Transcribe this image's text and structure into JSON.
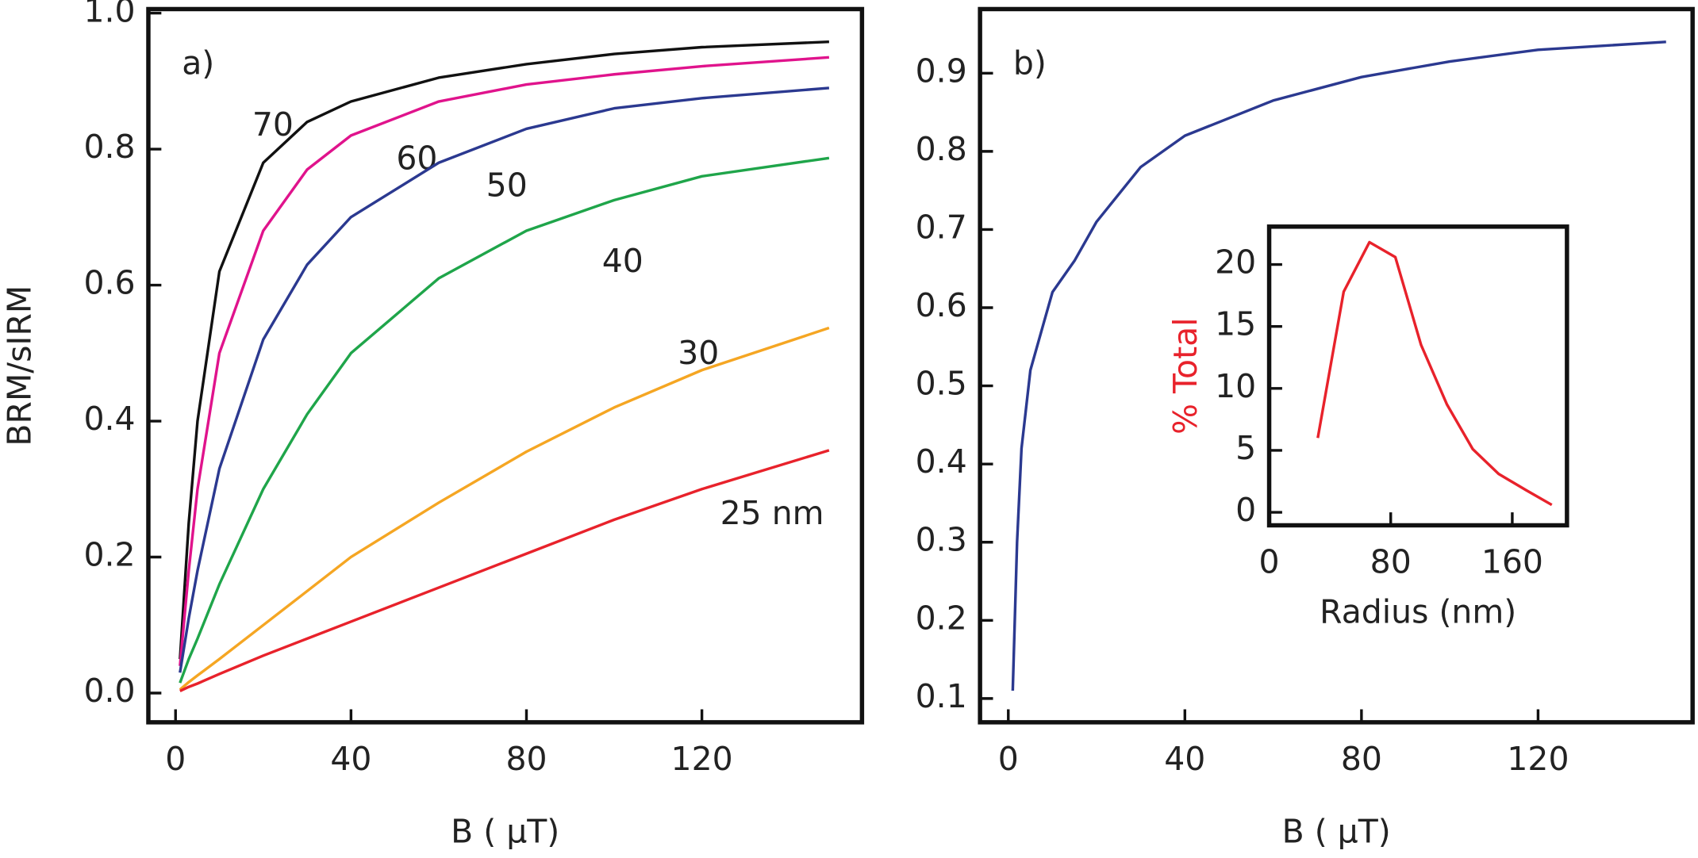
{
  "chart_data": [
    {
      "type": "line",
      "title": "a)",
      "x_label": "B ( μT)",
      "y_label": "BRM/sIRM",
      "x": [
        1,
        3,
        5,
        10,
        20,
        30,
        40,
        60,
        80,
        100,
        120,
        149
      ],
      "series": [
        {
          "name": "70",
          "color": "#111111",
          "values": [
            0.05,
            0.25,
            0.4,
            0.62,
            0.78,
            0.84,
            0.87,
            0.905,
            0.925,
            0.94,
            0.95,
            0.958
          ]
        },
        {
          "name": "60",
          "color": "#e0138c",
          "values": [
            0.04,
            0.18,
            0.3,
            0.5,
            0.68,
            0.77,
            0.82,
            0.87,
            0.895,
            0.91,
            0.922,
            0.935
          ]
        },
        {
          "name": "50",
          "color": "#2b3990",
          "values": [
            0.03,
            0.11,
            0.18,
            0.33,
            0.52,
            0.63,
            0.7,
            0.78,
            0.83,
            0.86,
            0.875,
            0.89
          ]
        },
        {
          "name": "40",
          "color": "#1fa54a",
          "values": [
            0.015,
            0.05,
            0.08,
            0.16,
            0.3,
            0.41,
            0.5,
            0.61,
            0.68,
            0.725,
            0.76,
            0.787
          ]
        },
        {
          "name": "30",
          "color": "#f5a623",
          "values": [
            0.005,
            0.016,
            0.026,
            0.05,
            0.1,
            0.15,
            0.2,
            0.28,
            0.355,
            0.42,
            0.475,
            0.537
          ]
        },
        {
          "name": "25 nm",
          "color": "#e8222b",
          "values": [
            0.003,
            0.009,
            0.014,
            0.028,
            0.055,
            0.08,
            0.105,
            0.155,
            0.205,
            0.255,
            0.3,
            0.357
          ]
        }
      ],
      "xlim": [
        -6.2,
        156.5
      ],
      "xticks": [
        0,
        40,
        80,
        120
      ],
      "ylim": [
        -0.043,
        1.006
      ],
      "yticks": [
        {
          "value": 0,
          "label": "0.0"
        },
        0.2,
        0.4,
        0.6,
        0.8,
        {
          "value": 1,
          "label": "1.0"
        }
      ]
    },
    {
      "type": "line",
      "title": "b)",
      "x_label": "B ( μT)",
      "x": [
        1,
        2,
        3,
        5,
        8,
        10,
        15,
        20,
        30,
        40,
        60,
        80,
        100,
        120,
        149
      ],
      "series": [
        {
          "color": "#2b3990",
          "values": [
            0.11,
            0.3,
            0.42,
            0.52,
            0.58,
            0.62,
            0.66,
            0.71,
            0.78,
            0.82,
            0.865,
            0.895,
            0.915,
            0.93,
            0.94
          ]
        }
      ],
      "xlim": [
        -6.4,
        155
      ],
      "xticks": [
        0,
        40,
        80,
        120
      ],
      "ylim": [
        0.0696,
        0.982
      ],
      "yticks": [
        0.1,
        0.2,
        0.3,
        0.4,
        0.5,
        0.6,
        0.7,
        0.8,
        0.9
      ]
    },
    {
      "type": "line",
      "x_label": "Radius (nm)",
      "y_label": "% Total",
      "y_label_color": "#e8222b",
      "x": [
        32,
        49,
        66,
        83,
        100,
        117,
        134,
        151,
        169,
        186
      ],
      "series": [
        {
          "color": "#e8222b",
          "values": [
            6,
            17.8,
            21.8,
            20.6,
            13.5,
            8.7,
            5.1,
            3.1,
            1.8,
            0.6
          ]
        }
      ],
      "xlim": [
        0,
        196
      ],
      "xticks": [
        0,
        80,
        160
      ],
      "ylim": [
        -1.05,
        23.06
      ],
      "yticks": [
        0,
        5,
        10,
        15,
        20
      ]
    }
  ]
}
